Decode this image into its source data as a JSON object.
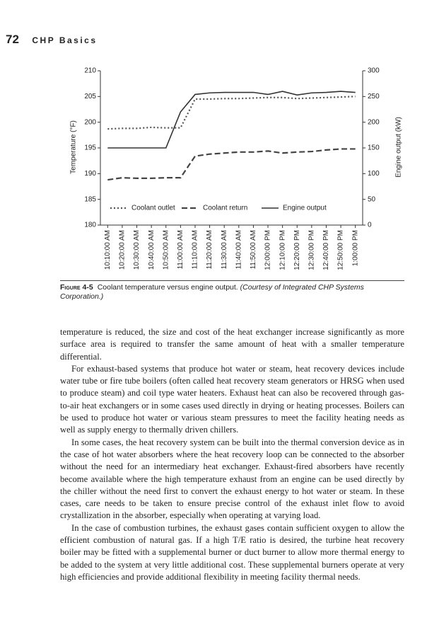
{
  "header": {
    "page_number": "72",
    "running_title": "CHP Basics"
  },
  "chart_data": {
    "type": "line",
    "y_label": "Temperature (°F)",
    "y2_label": "Engine output (kW)",
    "categories": [
      "10:10:00 AM",
      "10:20:00 AM",
      "10:30:00 AM",
      "10:40:00 AM",
      "10:50:00 AM",
      "11:00:00 AM",
      "11:10:00 AM",
      "11:20:00 AM",
      "11:30:00 AM",
      "11:40:00 AM",
      "11:50:00 AM",
      "12:00:00 PM",
      "12:10:00 PM",
      "12:20:00 PM",
      "12:30:00 PM",
      "12:40:00 PM",
      "12:50:00 PM",
      "1:00:00 PM"
    ],
    "series": [
      {
        "name": "Coolant outlet",
        "color": "#555555",
        "dash": "dotted",
        "axis": "y",
        "values": [
          198.7,
          198.8,
          198.8,
          199.0,
          198.9,
          198.9,
          204.5,
          204.5,
          204.6,
          204.6,
          204.7,
          204.8,
          204.8,
          204.6,
          204.7,
          204.8,
          204.9,
          205.0
        ]
      },
      {
        "name": "Coolant return",
        "color": "#444444",
        "dash": "dashed",
        "axis": "y",
        "values": [
          188.8,
          189.2,
          189.1,
          189.1,
          189.2,
          189.2,
          193.4,
          193.8,
          194.0,
          194.2,
          194.2,
          194.4,
          194.0,
          194.2,
          194.3,
          194.6,
          194.8,
          194.8
        ]
      },
      {
        "name": "Engine output",
        "color": "#333333",
        "dash": "solid",
        "axis": "y2",
        "values": [
          150,
          150,
          150,
          150,
          150,
          220,
          254,
          257,
          258,
          258,
          258,
          254,
          260,
          253,
          257,
          258,
          260,
          258
        ]
      }
    ],
    "ylim": [
      180,
      210
    ],
    "yticks": [
      180,
      185,
      190,
      195,
      200,
      205,
      210
    ],
    "y2lim": [
      0,
      300
    ],
    "y2ticks": [
      0,
      50,
      100,
      150,
      200,
      250,
      300
    ],
    "grid": false,
    "legend": "bottom"
  },
  "caption": {
    "label": "Figure 4-5",
    "text": "Coolant temperature versus engine output.",
    "credit": "(Courtesy of Integrated CHP Systems Corporation.)"
  },
  "paragraphs": [
    "temperature is reduced, the size and cost of the heat exchanger increase significantly as more surface area is required to transfer the same amount of heat with a smaller temperature differential.",
    "For exhaust-based systems that produce hot water or steam, heat recovery devices include water tube or fire tube boilers (often called heat recovery steam generators or HRSG when used to produce steam) and coil type water heaters. Exhaust heat can also be recovered through gas-to-air heat exchangers or in some cases used directly in drying or heating processes. Boilers can be used to produce hot water or various steam pressures to meet the facility heating needs as well as supply energy to thermally driven chillers.",
    "In some cases, the heat recovery system can be built into the thermal conversion device as in the case of hot water absorbers where the heat recovery loop can be connected to the absorber without the need for an intermediary heat exchanger. Exhaust-fired absorbers have recently become available where the high temperature exhaust from an engine can be used directly by the chiller without the need first to convert the exhaust energy to hot water or steam. In these cases, care needs to be taken to ensure precise control of the exhaust inlet flow to avoid crystallization in the absorber, especially when operating at varying load.",
    "In the case of combustion turbines, the exhaust gases contain sufficient oxygen to allow the efficient combustion of natural gas. If a high T/E ratio is desired, the turbine heat recovery boiler may be fitted with a supplemental burner or duct burner to allow more thermal energy to be added to the system at very little additional cost. These supplemental burners operate at very high efficiencies and provide additional flexibility in meeting facility thermal needs."
  ]
}
